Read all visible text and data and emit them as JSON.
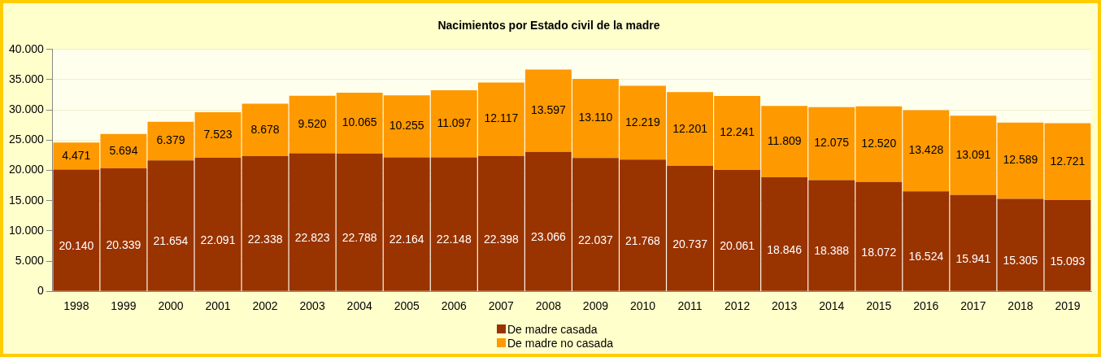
{
  "chart_data": {
    "type": "bar",
    "title": "Nacimientos por Estado civil de la madre",
    "stacked": true,
    "grid": "y",
    "legend": "bottom",
    "categories": [
      "1998",
      "1999",
      "2000",
      "2001",
      "2002",
      "2003",
      "2004",
      "2005",
      "2006",
      "2007",
      "2008",
      "2009",
      "2010",
      "2011",
      "2012",
      "2013",
      "2014",
      "2015",
      "2016",
      "2017",
      "2018",
      "2019"
    ],
    "ylim": [
      0,
      40000
    ],
    "yticks": [
      0,
      {
        "value": 5000,
        "label": "5.000"
      },
      {
        "value": 10000,
        "label": "10.000"
      },
      {
        "value": 15000,
        "label": "15.000"
      },
      {
        "value": 20000,
        "label": "20.000"
      },
      {
        "value": 25000,
        "label": "25.000"
      },
      {
        "value": 30000,
        "label": "30.000"
      },
      {
        "value": 35000,
        "label": "35.000"
      },
      {
        "value": 40000,
        "label": "40.000"
      }
    ],
    "series": [
      {
        "name": "De madre casada",
        "color": "#993300",
        "values": [
          20140,
          20339,
          21654,
          22091,
          22338,
          22823,
          22788,
          22164,
          22148,
          22398,
          23066,
          22037,
          21768,
          20737,
          20061,
          18846,
          18388,
          18072,
          16524,
          15941,
          15305,
          15093
        ],
        "value_labels": [
          "20.140",
          "20.339",
          "21.654",
          "22.091",
          "22.338",
          "22.823",
          "22.788",
          "22.164",
          "22.148",
          "22.398",
          "23.066",
          "22.037",
          "21.768",
          "20.737",
          "20.061",
          "18.846",
          "18.388",
          "18.072",
          "16.524",
          "15.941",
          "15.305",
          "15.093"
        ]
      },
      {
        "name": "De madre no casada",
        "color": "#ff9900",
        "values": [
          4471,
          5694,
          6379,
          7523,
          8678,
          9520,
          10065,
          10255,
          11097,
          12117,
          13597,
          13110,
          12219,
          12201,
          12241,
          11809,
          12075,
          12520,
          13428,
          13091,
          12589,
          12721
        ],
        "value_labels": [
          "4.471",
          "5.694",
          "6.379",
          "7.523",
          "8.678",
          "9.520",
          "10.065",
          "10.255",
          "11.097",
          "12.117",
          "13.597",
          "13.110",
          "12.219",
          "12.201",
          "12.241",
          "11.809",
          "12.075",
          "12.520",
          "13.428",
          "13.091",
          "12.589",
          "12.721"
        ]
      }
    ]
  }
}
